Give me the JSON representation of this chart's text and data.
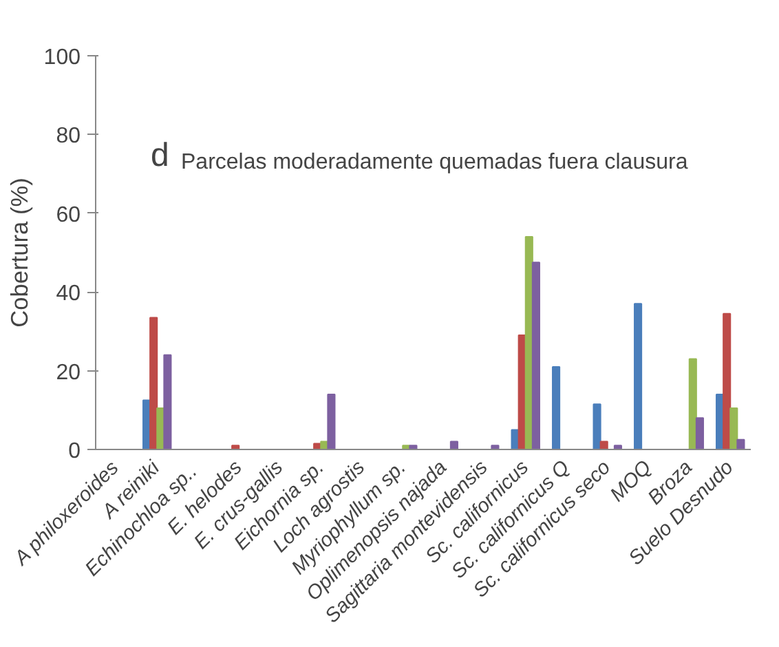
{
  "chart_data": {
    "type": "bar",
    "categories": [
      "A philoxeroides",
      "A reiniki",
      "Echinochloa  sp..",
      "E. helodes",
      "E. crus-gallis",
      "Eichornia sp.",
      "Loch agrostis",
      "Myriophyllum sp.",
      "Oplimenopsis najada",
      "Sagittaria montevidensis",
      "Sc. californicus",
      "Sc. californicus Q",
      "Sc. californicus seco",
      "MOQ",
      "Broza",
      "Suelo Desnudo"
    ],
    "series": [
      {
        "color": "#4a7ebb",
        "values": [
          null,
          12.5,
          null,
          null,
          null,
          null,
          null,
          null,
          null,
          null,
          5,
          21,
          11.5,
          37,
          null,
          14
        ]
      },
      {
        "color": "#be4b48",
        "values": [
          null,
          33.5,
          null,
          1,
          null,
          1.5,
          null,
          null,
          null,
          null,
          29,
          null,
          2,
          null,
          null,
          34.5
        ]
      },
      {
        "color": "#98b954",
        "values": [
          null,
          10.5,
          null,
          null,
          null,
          2,
          null,
          1,
          null,
          null,
          54,
          null,
          null,
          null,
          23,
          10.5
        ]
      },
      {
        "color": "#7d60a0",
        "values": [
          null,
          24,
          null,
          null,
          null,
          14,
          null,
          1,
          2,
          1,
          47.5,
          null,
          1,
          null,
          8,
          2.5
        ]
      }
    ],
    "ylabel": "Cobertura (%)",
    "ylim": [
      0,
      100
    ],
    "yticks": [
      0,
      20,
      40,
      60,
      80,
      100
    ],
    "annotations": [
      "d",
      "Parcelas moderadamente quemadas fuera clausura"
    ],
    "grid": false
  }
}
